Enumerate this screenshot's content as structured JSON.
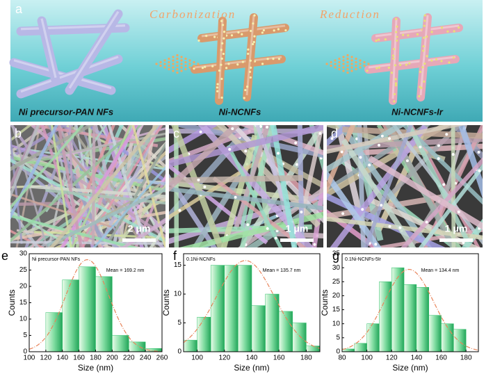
{
  "scheme": {
    "label": "a",
    "steps": [
      "Carbonization",
      "Reduction"
    ],
    "materials": [
      "Ni precursor-PAN NFs",
      "Ni-NCNFs",
      "Ni-NCNFs-Ir"
    ]
  },
  "micrographs": [
    {
      "label": "b",
      "scale_bar": "2 μm"
    },
    {
      "label": "c",
      "scale_bar": "1 μm"
    },
    {
      "label": "d",
      "scale_bar": "1 μm"
    }
  ],
  "histogram_panels": [
    "e",
    "f",
    "g"
  ],
  "chart_data": [
    {
      "type": "histogram",
      "title": "Ni precursor-PAN NFs",
      "annotation": "Mean = 169.2 nm",
      "x_label": "Size (nm)",
      "y_label": "Counts",
      "bins": [
        100,
        120,
        140,
        160,
        180,
        200,
        220,
        240,
        260
      ],
      "values": [
        0,
        12,
        22,
        26,
        23,
        5,
        3,
        1
      ],
      "color": "#2fbf6a",
      "xlim": [
        100,
        260
      ],
      "xticks": [
        100,
        120,
        140,
        160,
        180,
        200,
        220,
        240,
        260
      ],
      "ylim": [
        0,
        30
      ],
      "yticks": [
        0,
        5,
        10,
        15,
        20,
        25,
        30
      ]
    },
    {
      "type": "histogram",
      "title": "0.1Ni-NCNFs",
      "annotation": "Mean = 135.7 nm",
      "x_label": "Size (nm)",
      "y_label": "Counts",
      "bins": [
        90,
        100,
        110,
        120,
        130,
        140,
        150,
        160,
        170,
        180,
        190
      ],
      "values": [
        2,
        6,
        15,
        15,
        15,
        8,
        10,
        7,
        5,
        1
      ],
      "color": "#2fbf6a",
      "xlim": [
        90,
        190
      ],
      "xticks": [
        100,
        120,
        140,
        160,
        180
      ],
      "ylim": [
        0,
        17
      ],
      "yticks": [
        0,
        5,
        10,
        15
      ]
    },
    {
      "type": "histogram",
      "title": "0.1Ni-NCNFs-5Ir",
      "annotation": "Mean = 134.4 nm",
      "x_label": "Size (nm)",
      "y_label": "Counts",
      "bins": [
        80,
        90,
        100,
        110,
        120,
        130,
        140,
        150,
        160,
        170,
        180,
        190
      ],
      "values": [
        1,
        3,
        10,
        25,
        30,
        24,
        23,
        13,
        10,
        8,
        0
      ],
      "color": "#2fbf6a",
      "xlim": [
        80,
        190
      ],
      "xticks": [
        80,
        100,
        120,
        140,
        160,
        180
      ],
      "ylim": [
        0,
        35
      ],
      "yticks": [
        0,
        5,
        10,
        15,
        20,
        25,
        30,
        35
      ]
    }
  ]
}
